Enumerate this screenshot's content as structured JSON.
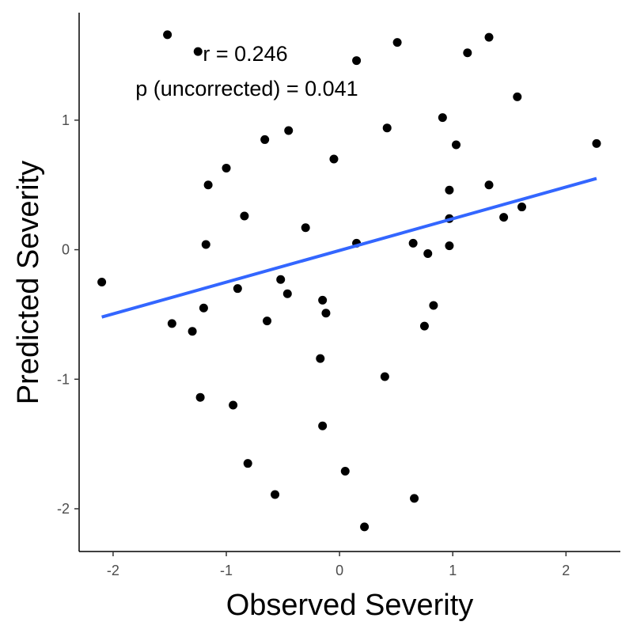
{
  "chart_data": {
    "type": "scatter",
    "title": "",
    "xlabel": "Observed Severity",
    "ylabel": "Predicted Severity",
    "xlim": [
      -2.3,
      2.48
    ],
    "ylim": [
      -2.33,
      1.83
    ],
    "x_ticks": [
      -2,
      -1,
      0,
      1,
      2
    ],
    "y_ticks": [
      -2,
      -1,
      0,
      1
    ],
    "x_tick_labels": [
      "-2",
      "-1",
      "0",
      "1",
      "2"
    ],
    "y_tick_labels": [
      "-2",
      "-1",
      "0",
      "1"
    ],
    "grid": false,
    "annotations": [
      "r = 0.246",
      "p (uncorrected) = 0.041"
    ],
    "colors": {
      "points": "#000000",
      "fit_line": "#3366ff",
      "axis": "#000000",
      "tick_text": "#4d4d4d"
    },
    "fit_line": {
      "x": [
        -2.1,
        2.27
      ],
      "y": [
        -0.52,
        0.55
      ]
    },
    "points": [
      {
        "x": -1.52,
        "y": 1.66
      },
      {
        "x": -1.25,
        "y": 1.53
      },
      {
        "x": 0.15,
        "y": 1.46
      },
      {
        "x": 0.51,
        "y": 1.6
      },
      {
        "x": 1.13,
        "y": 1.52
      },
      {
        "x": 1.32,
        "y": 1.64
      },
      {
        "x": 1.57,
        "y": 1.18
      },
      {
        "x": 0.91,
        "y": 1.02
      },
      {
        "x": 0.42,
        "y": 0.94
      },
      {
        "x": -0.45,
        "y": 0.92
      },
      {
        "x": -0.66,
        "y": 0.85
      },
      {
        "x": 1.03,
        "y": 0.81
      },
      {
        "x": 2.27,
        "y": 0.82
      },
      {
        "x": -0.05,
        "y": 0.7
      },
      {
        "x": -1.0,
        "y": 0.63
      },
      {
        "x": -1.16,
        "y": 0.5
      },
      {
        "x": 1.32,
        "y": 0.5
      },
      {
        "x": 0.97,
        "y": 0.46
      },
      {
        "x": 1.61,
        "y": 0.33
      },
      {
        "x": -0.84,
        "y": 0.26
      },
      {
        "x": 0.97,
        "y": 0.24
      },
      {
        "x": 1.45,
        "y": 0.25
      },
      {
        "x": -0.3,
        "y": 0.17
      },
      {
        "x": -1.18,
        "y": 0.04
      },
      {
        "x": 0.15,
        "y": 0.05
      },
      {
        "x": 0.65,
        "y": 0.05
      },
      {
        "x": 0.97,
        "y": 0.03
      },
      {
        "x": 0.78,
        "y": -0.03
      },
      {
        "x": -0.52,
        "y": -0.23
      },
      {
        "x": -2.1,
        "y": -0.25
      },
      {
        "x": -0.9,
        "y": -0.3
      },
      {
        "x": -0.46,
        "y": -0.34
      },
      {
        "x": -0.15,
        "y": -0.39
      },
      {
        "x": 0.83,
        "y": -0.43
      },
      {
        "x": -1.2,
        "y": -0.45
      },
      {
        "x": -0.12,
        "y": -0.49
      },
      {
        "x": -0.64,
        "y": -0.55
      },
      {
        "x": -1.48,
        "y": -0.57
      },
      {
        "x": 0.75,
        "y": -0.59
      },
      {
        "x": -1.3,
        "y": -0.63
      },
      {
        "x": -0.17,
        "y": -0.84
      },
      {
        "x": 0.4,
        "y": -0.98
      },
      {
        "x": -1.23,
        "y": -1.14
      },
      {
        "x": -0.94,
        "y": -1.2
      },
      {
        "x": -0.15,
        "y": -1.36
      },
      {
        "x": -0.81,
        "y": -1.65
      },
      {
        "x": 0.05,
        "y": -1.71
      },
      {
        "x": -0.57,
        "y": -1.89
      },
      {
        "x": 0.66,
        "y": -1.92
      },
      {
        "x": 0.22,
        "y": -2.14
      }
    ]
  }
}
